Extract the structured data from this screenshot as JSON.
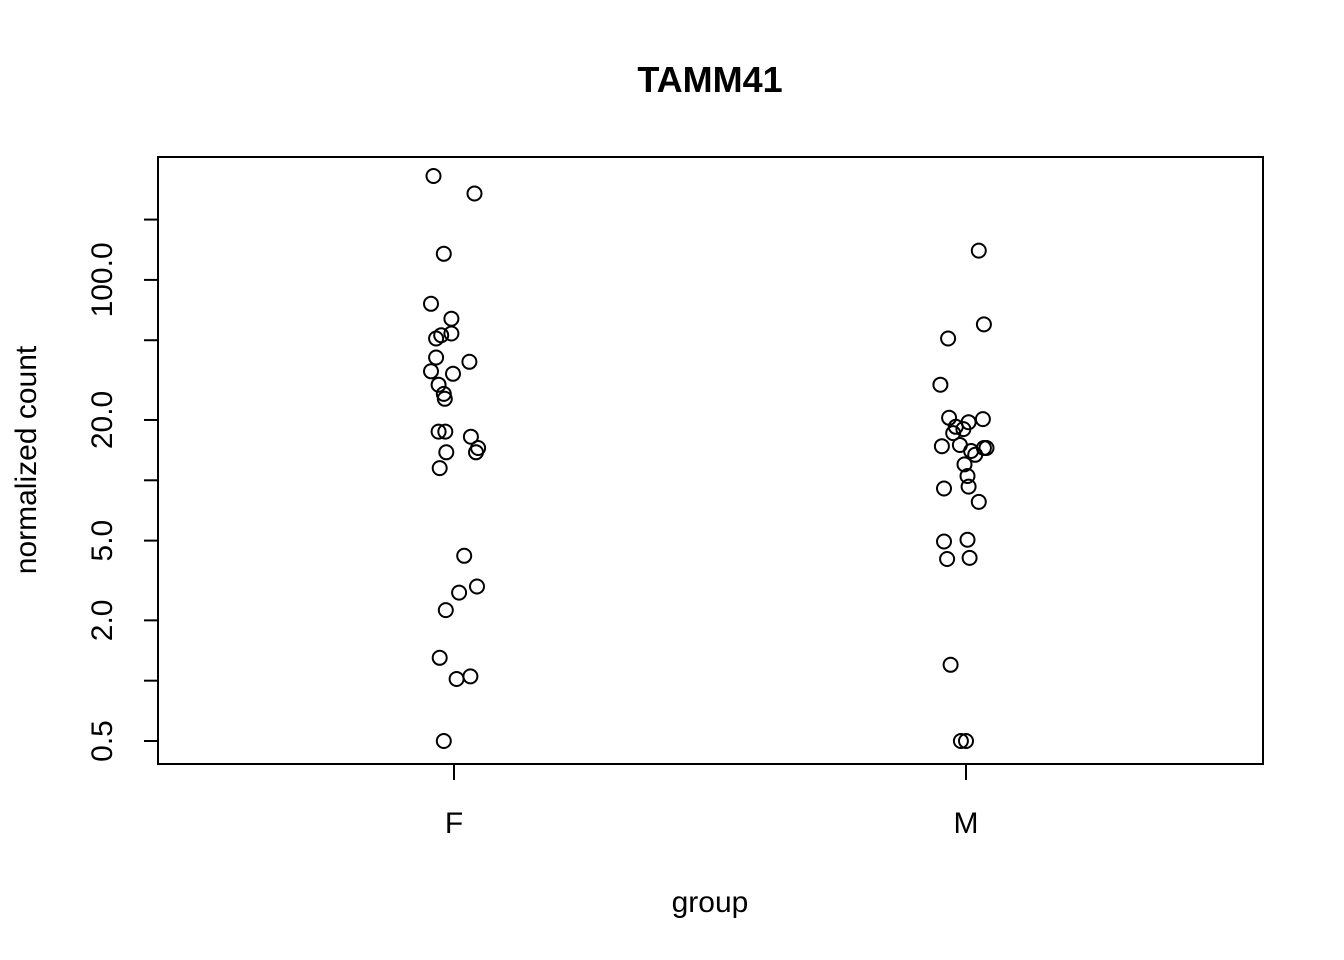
{
  "chart_data": {
    "type": "scatter",
    "title": "TAMM41",
    "xlabel": "group",
    "ylabel": "normalized count",
    "y_scale": "log",
    "ylim": [
      0.42,
      400
    ],
    "y_ticks": [
      0.5,
      1,
      2,
      5,
      10,
      20,
      50,
      100,
      200
    ],
    "y_tick_labels": [
      {
        "value": 0.5,
        "label": "0.5"
      },
      {
        "value": 2,
        "label": "2.0"
      },
      {
        "value": 5,
        "label": "5.0"
      },
      {
        "value": 20,
        "label": "20.0"
      },
      {
        "value": 100,
        "label": "100.0"
      }
    ],
    "categories": [
      "F",
      "M"
    ],
    "grid": false,
    "series": [
      {
        "category": "F",
        "points": [
          {
            "jitter": -0.04,
            "y": 330
          },
          {
            "jitter": 0.04,
            "y": 270
          },
          {
            "jitter": -0.02,
            "y": 135
          },
          {
            "jitter": -0.045,
            "y": 76
          },
          {
            "jitter": -0.005,
            "y": 64
          },
          {
            "jitter": -0.005,
            "y": 54
          },
          {
            "jitter": -0.025,
            "y": 53
          },
          {
            "jitter": -0.035,
            "y": 51
          },
          {
            "jitter": -0.035,
            "y": 41
          },
          {
            "jitter": 0.03,
            "y": 39
          },
          {
            "jitter": -0.045,
            "y": 35
          },
          {
            "jitter": -0.002,
            "y": 34
          },
          {
            "jitter": -0.03,
            "y": 30
          },
          {
            "jitter": -0.02,
            "y": 27
          },
          {
            "jitter": -0.018,
            "y": 25.5
          },
          {
            "jitter": -0.03,
            "y": 17.5
          },
          {
            "jitter": -0.017,
            "y": 17.5
          },
          {
            "jitter": 0.033,
            "y": 16.5
          },
          {
            "jitter": 0.047,
            "y": 14.5
          },
          {
            "jitter": 0.043,
            "y": 13.8
          },
          {
            "jitter": -0.015,
            "y": 13.8
          },
          {
            "jitter": -0.028,
            "y": 11.5
          },
          {
            "jitter": 0.02,
            "y": 4.2
          },
          {
            "jitter": 0.01,
            "y": 2.75
          },
          {
            "jitter": 0.045,
            "y": 2.95
          },
          {
            "jitter": -0.016,
            "y": 2.25
          },
          {
            "jitter": -0.028,
            "y": 1.3
          },
          {
            "jitter": 0.032,
            "y": 1.05
          },
          {
            "jitter": 0.005,
            "y": 1.02
          },
          {
            "jitter": -0.02,
            "y": 0.5
          }
        ]
      },
      {
        "category": "M",
        "points": [
          {
            "jitter": 0.025,
            "y": 140
          },
          {
            "jitter": 0.035,
            "y": 60
          },
          {
            "jitter": -0.035,
            "y": 51
          },
          {
            "jitter": -0.05,
            "y": 30
          },
          {
            "jitter": -0.033,
            "y": 20.5
          },
          {
            "jitter": 0.033,
            "y": 20.2
          },
          {
            "jitter": 0.005,
            "y": 19.5
          },
          {
            "jitter": -0.02,
            "y": 18.5
          },
          {
            "jitter": -0.005,
            "y": 18
          },
          {
            "jitter": -0.025,
            "y": 17.2
          },
          {
            "jitter": -0.012,
            "y": 15
          },
          {
            "jitter": -0.047,
            "y": 14.8
          },
          {
            "jitter": 0.01,
            "y": 14
          },
          {
            "jitter": 0.035,
            "y": 14.5
          },
          {
            "jitter": 0.04,
            "y": 14.5
          },
          {
            "jitter": 0.018,
            "y": 13.4
          },
          {
            "jitter": -0.003,
            "y": 12
          },
          {
            "jitter": 0.003,
            "y": 10.5
          },
          {
            "jitter": 0.005,
            "y": 9.3
          },
          {
            "jitter": -0.043,
            "y": 9.1
          },
          {
            "jitter": 0.025,
            "y": 7.8
          },
          {
            "jitter": 0.003,
            "y": 5.05
          },
          {
            "jitter": -0.043,
            "y": 4.95
          },
          {
            "jitter": -0.037,
            "y": 4.05
          },
          {
            "jitter": 0.007,
            "y": 4.1
          },
          {
            "jitter": -0.03,
            "y": 1.2
          },
          {
            "jitter": -0.01,
            "y": 0.5
          },
          {
            "jitter": 0.0,
            "y": 0.5
          }
        ]
      }
    ]
  }
}
